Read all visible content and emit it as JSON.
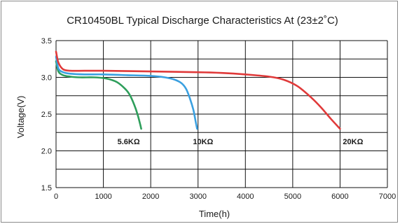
{
  "chart_data": {
    "type": "line",
    "title": "CR10450BL Typical Discharge Characteristics At (23±2˚C)",
    "xlabel": "Time(h)",
    "ylabel": "Voltage(V)",
    "xlim": [
      0,
      7000
    ],
    "ylim": [
      1.5,
      3.5
    ],
    "x_ticks": [
      "0",
      "1000",
      "2000",
      "3000",
      "4000",
      "5000",
      "6000",
      "7000"
    ],
    "y_ticks": [
      "1.5",
      "2.0",
      "2.5",
      "3.0",
      "3.5"
    ],
    "grid": true,
    "series": [
      {
        "name": "5.6KΩ",
        "color": "#2e9e5b",
        "x": [
          0,
          50,
          150,
          300,
          500,
          800,
          1000,
          1150,
          1300,
          1450,
          1550,
          1650,
          1720,
          1770,
          1800
        ],
        "y": [
          3.22,
          3.08,
          3.03,
          3.01,
          3.0,
          3.0,
          2.99,
          2.97,
          2.93,
          2.85,
          2.77,
          2.63,
          2.5,
          2.38,
          2.3
        ]
      },
      {
        "name": "10KΩ",
        "color": "#3aa0e0",
        "x": [
          0,
          50,
          150,
          300,
          600,
          1000,
          1500,
          2000,
          2300,
          2500,
          2650,
          2750,
          2830,
          2900,
          2950,
          2980
        ],
        "y": [
          3.28,
          3.12,
          3.07,
          3.05,
          3.04,
          3.04,
          3.03,
          3.02,
          3.0,
          2.97,
          2.92,
          2.84,
          2.71,
          2.56,
          2.4,
          2.3
        ]
      },
      {
        "name": "20KΩ",
        "color": "#e03a3a",
        "x": [
          0,
          50,
          150,
          300,
          600,
          1000,
          2000,
          3000,
          3500,
          4000,
          4500,
          4800,
          5100,
          5400,
          5600,
          5800,
          6000
        ],
        "y": [
          3.35,
          3.2,
          3.11,
          3.09,
          3.09,
          3.09,
          3.08,
          3.07,
          3.06,
          3.04,
          3.01,
          2.97,
          2.88,
          2.72,
          2.59,
          2.44,
          2.3
        ]
      }
    ]
  }
}
